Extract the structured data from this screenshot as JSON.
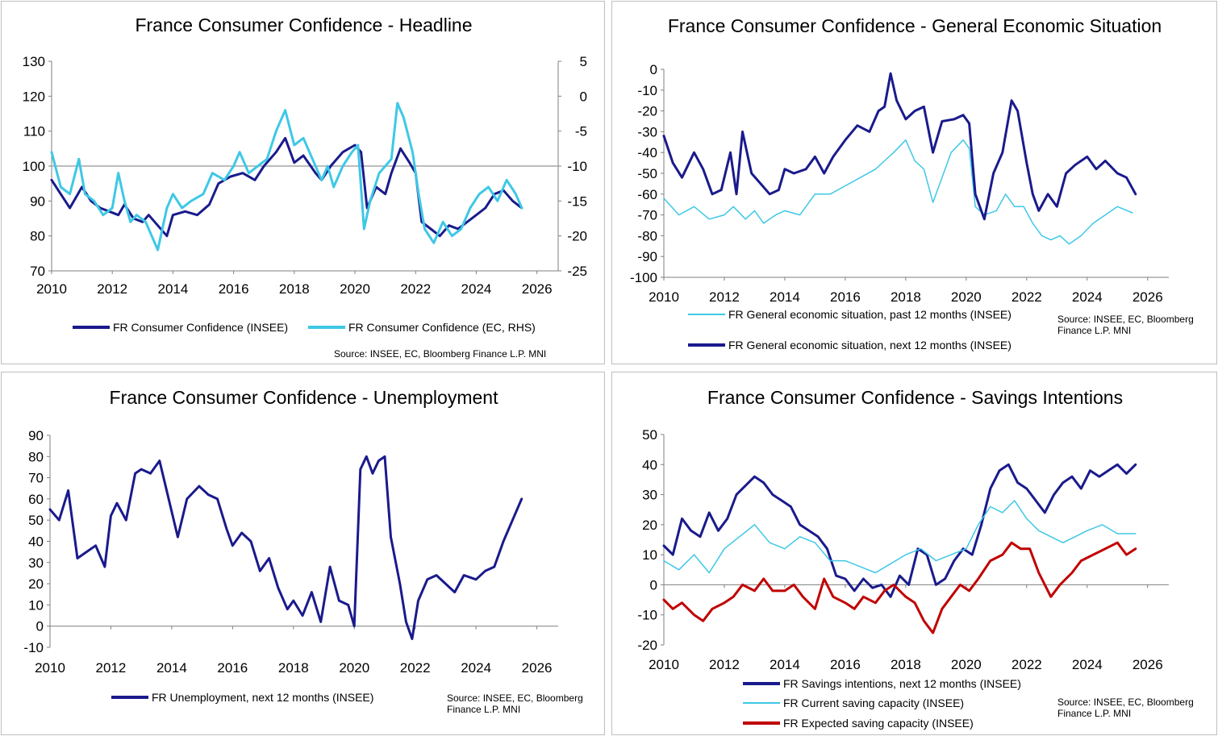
{
  "colors": {
    "navy": "#1a1a8c",
    "cyan": "#3ec8e6",
    "red": "#c00000",
    "axis": "#7f7f7f",
    "ref": "#a6a6a6"
  },
  "panels": {
    "headline": {
      "title": "France Consumer Confidence - Headline",
      "legend": [
        "FR Consumer Confidence (INSEE)",
        "FR Consumer Confidence (EC, RHS)"
      ],
      "source": "Source: INSEE, EC, Bloomberg Finance L.P. MNI"
    },
    "general": {
      "title": "France Consumer Confidence - General Economic Situation",
      "legend": [
        "FR General economic situation, past 12 months (INSEE)",
        "FR General economic situation, next 12 months (INSEE)"
      ],
      "source": "Source: INSEE, EC, Bloomberg Finance L.P. MNI"
    },
    "unemployment": {
      "title": "France Consumer Confidence - Unemployment",
      "legend": [
        "FR Unemployment, next 12 months (INSEE)"
      ],
      "source": "Source: INSEE, EC, Bloomberg Finance L.P. MNI"
    },
    "savings": {
      "title": "France Consumer Confidence - Savings Intentions",
      "legend": [
        "FR Savings intentions, next 12 months (INSEE)",
        "FR Current saving capacity (INSEE)",
        "FR Expected saving capacity (INSEE)"
      ],
      "source": "Source: INSEE, EC, Bloomberg Finance L.P. MNI"
    }
  },
  "chart_data": [
    {
      "id": "headline",
      "type": "line",
      "title": "France Consumer Confidence - Headline",
      "xlim": [
        2010,
        2026.7
      ],
      "xticks": [
        "2010",
        "2012",
        "2014",
        "2016",
        "2018",
        "2020",
        "2022",
        "2024",
        "2026"
      ],
      "ylim": [
        70,
        130
      ],
      "yticks": [
        "70",
        "80",
        "90",
        "100",
        "110",
        "120",
        "130"
      ],
      "y2lim": [
        -25,
        5
      ],
      "y2ticks": [
        "-25",
        "-20",
        "-15",
        "-10",
        "-5",
        "0",
        "5"
      ],
      "refline": 100,
      "series": [
        {
          "name": "FR Consumer Confidence (INSEE)",
          "color": "navy",
          "width": 3,
          "axis": "left",
          "x": [
            2010,
            2010.3,
            2010.6,
            2011,
            2011.3,
            2011.6,
            2011.9,
            2012.2,
            2012.4,
            2012.7,
            2013,
            2013.2,
            2013.5,
            2013.8,
            2014,
            2014.4,
            2014.8,
            2015.2,
            2015.5,
            2015.9,
            2016.3,
            2016.7,
            2017,
            2017.4,
            2017.7,
            2018,
            2018.3,
            2018.7,
            2018.9,
            2019.2,
            2019.6,
            2020,
            2020.2,
            2020.4,
            2020.7,
            2021,
            2021.2,
            2021.5,
            2021.8,
            2022,
            2022.2,
            2022.5,
            2022.8,
            2023.1,
            2023.4,
            2023.7,
            2024,
            2024.3,
            2024.6,
            2024.9,
            2025.2,
            2025.5
          ],
          "y": [
            96,
            92,
            88,
            94,
            90,
            88,
            87,
            86,
            89,
            85,
            84,
            86,
            83,
            80,
            86,
            87,
            86,
            89,
            95,
            97,
            98,
            96,
            100,
            104,
            108,
            101,
            103,
            98,
            96,
            100,
            104,
            106,
            104,
            88,
            94,
            92,
            98,
            105,
            101,
            98,
            84,
            82,
            80,
            83,
            82,
            84,
            86,
            88,
            92,
            93,
            90,
            88
          ]
        },
        {
          "name": "FR Consumer Confidence (EC, RHS)",
          "color": "cyan",
          "width": 3,
          "axis": "right",
          "x": [
            2010,
            2010.3,
            2010.6,
            2010.9,
            2011.1,
            2011.4,
            2011.7,
            2012,
            2012.2,
            2012.4,
            2012.6,
            2012.8,
            2013.1,
            2013.3,
            2013.5,
            2013.8,
            2014,
            2014.3,
            2014.6,
            2015,
            2015.3,
            2015.7,
            2016,
            2016.2,
            2016.5,
            2016.8,
            2017.1,
            2017.4,
            2017.7,
            2018,
            2018.3,
            2018.6,
            2018.9,
            2019.1,
            2019.3,
            2019.6,
            2019.9,
            2020.1,
            2020.3,
            2020.5,
            2020.8,
            2021,
            2021.2,
            2021.4,
            2021.6,
            2021.9,
            2022.1,
            2022.3,
            2022.6,
            2022.9,
            2023.2,
            2023.5,
            2023.8,
            2024.1,
            2024.4,
            2024.7,
            2025,
            2025.3,
            2025.5
          ],
          "y": [
            -8,
            -13,
            -14,
            -9,
            -14,
            -15,
            -17,
            -16,
            -11,
            -15,
            -18,
            -17,
            -18,
            -20,
            -22,
            -16,
            -14,
            -16,
            -15,
            -14,
            -11,
            -12,
            -10,
            -8,
            -11,
            -10,
            -9,
            -5,
            -2,
            -7,
            -6,
            -9,
            -12,
            -10,
            -13,
            -10,
            -8,
            -7,
            -19,
            -15,
            -11,
            -10,
            -9,
            -1,
            -3,
            -8,
            -14,
            -19,
            -21,
            -18,
            -20,
            -19,
            -16,
            -14,
            -13,
            -15,
            -12,
            -14,
            -16
          ]
        }
      ]
    },
    {
      "id": "general",
      "type": "line",
      "title": "France Consumer Confidence - General Economic Situation",
      "xlim": [
        2010,
        2026.7
      ],
      "xticks": [
        "2010",
        "2012",
        "2014",
        "2016",
        "2018",
        "2020",
        "2022",
        "2024",
        "2026"
      ],
      "ylim": [
        -100,
        0
      ],
      "yticks": [
        "0",
        "-10",
        "-20",
        "-30",
        "-40",
        "-50",
        "-60",
        "-70",
        "-80",
        "-90",
        "-100"
      ],
      "series": [
        {
          "name": "FR General economic situation, past 12 months (INSEE)",
          "color": "cyan",
          "width": 1.5,
          "x": [
            2010,
            2010.5,
            2011,
            2011.5,
            2012,
            2012.3,
            2012.7,
            2013,
            2013.3,
            2013.7,
            2014,
            2014.5,
            2015,
            2015.5,
            2016,
            2016.5,
            2017,
            2017.3,
            2017.6,
            2018,
            2018.3,
            2018.6,
            2018.9,
            2019.2,
            2019.5,
            2019.9,
            2020.1,
            2020.3,
            2020.6,
            2021,
            2021.3,
            2021.6,
            2021.9,
            2022.2,
            2022.5,
            2022.8,
            2023.1,
            2023.4,
            2023.8,
            2024.2,
            2024.6,
            2025,
            2025.5
          ],
          "y": [
            -62,
            -70,
            -66,
            -72,
            -70,
            -66,
            -72,
            -68,
            -74,
            -70,
            -68,
            -70,
            -60,
            -60,
            -56,
            -52,
            -48,
            -44,
            -40,
            -34,
            -44,
            -48,
            -64,
            -52,
            -40,
            -34,
            -38,
            -66,
            -70,
            -68,
            -60,
            -66,
            -66,
            -74,
            -80,
            -82,
            -80,
            -84,
            -80,
            -74,
            -70,
            -66,
            -69
          ]
        },
        {
          "name": "FR General economic situation, next 12 months (INSEE)",
          "color": "navy",
          "width": 3,
          "x": [
            2010,
            2010.3,
            2010.6,
            2011,
            2011.3,
            2011.6,
            2011.9,
            2012.2,
            2012.4,
            2012.6,
            2012.9,
            2013.2,
            2013.5,
            2013.8,
            2014,
            2014.3,
            2014.7,
            2015,
            2015.3,
            2015.6,
            2016,
            2016.4,
            2016.8,
            2017.1,
            2017.3,
            2017.5,
            2017.7,
            2018,
            2018.3,
            2018.6,
            2018.9,
            2019.2,
            2019.6,
            2019.9,
            2020.1,
            2020.3,
            2020.6,
            2020.9,
            2021.2,
            2021.5,
            2021.7,
            2022,
            2022.2,
            2022.4,
            2022.7,
            2023,
            2023.3,
            2023.6,
            2024,
            2024.3,
            2024.6,
            2025,
            2025.3,
            2025.6
          ],
          "y": [
            -32,
            -45,
            -52,
            -40,
            -48,
            -60,
            -58,
            -40,
            -60,
            -30,
            -50,
            -55,
            -60,
            -58,
            -48,
            -50,
            -48,
            -42,
            -50,
            -42,
            -34,
            -27,
            -30,
            -20,
            -18,
            -2,
            -15,
            -24,
            -20,
            -18,
            -40,
            -25,
            -24,
            -22,
            -26,
            -60,
            -72,
            -50,
            -40,
            -15,
            -20,
            -45,
            -60,
            -68,
            -60,
            -66,
            -50,
            -46,
            -42,
            -48,
            -44,
            -50,
            -52,
            -60
          ]
        }
      ]
    },
    {
      "id": "unemployment",
      "type": "line",
      "title": "France Consumer Confidence - Unemployment",
      "xlim": [
        2010,
        2026.7
      ],
      "xticks": [
        "2010",
        "2012",
        "2014",
        "2016",
        "2018",
        "2020",
        "2022",
        "2024",
        "2026"
      ],
      "ylim": [
        -10,
        90
      ],
      "yticks": [
        "-10",
        "0",
        "10",
        "20",
        "30",
        "40",
        "50",
        "60",
        "70",
        "80",
        "90"
      ],
      "series": [
        {
          "name": "FR Unemployment, next 12 months (INSEE)",
          "color": "navy",
          "width": 3,
          "x": [
            2010,
            2010.3,
            2010.6,
            2010.9,
            2011.2,
            2011.5,
            2011.8,
            2012,
            2012.2,
            2012.5,
            2012.8,
            2013,
            2013.3,
            2013.6,
            2013.9,
            2014.2,
            2014.5,
            2014.9,
            2015.2,
            2015.5,
            2015.8,
            2016,
            2016.3,
            2016.6,
            2016.9,
            2017.2,
            2017.5,
            2017.8,
            2018,
            2018.3,
            2018.6,
            2018.9,
            2019.2,
            2019.5,
            2019.8,
            2020,
            2020.2,
            2020.4,
            2020.6,
            2020.8,
            2021,
            2021.2,
            2021.5,
            2021.7,
            2021.9,
            2022.1,
            2022.4,
            2022.7,
            2023,
            2023.3,
            2023.6,
            2024,
            2024.3,
            2024.6,
            2024.9,
            2025.2,
            2025.5
          ],
          "y": [
            55,
            50,
            64,
            32,
            35,
            38,
            28,
            52,
            58,
            50,
            72,
            74,
            72,
            78,
            60,
            42,
            60,
            66,
            62,
            60,
            46,
            38,
            44,
            40,
            26,
            32,
            18,
            8,
            12,
            5,
            16,
            2,
            28,
            12,
            10,
            0,
            74,
            80,
            72,
            78,
            80,
            42,
            20,
            2,
            -6,
            12,
            22,
            24,
            20,
            16,
            24,
            22,
            26,
            28,
            40,
            50,
            60
          ]
        }
      ]
    },
    {
      "id": "savings",
      "type": "line",
      "title": "France Consumer Confidence - Savings Intentions",
      "xlim": [
        2010,
        2026.7
      ],
      "xticks": [
        "2010",
        "2012",
        "2014",
        "2016",
        "2018",
        "2020",
        "2022",
        "2024",
        "2026"
      ],
      "ylim": [
        -20,
        50
      ],
      "yticks": [
        "50",
        "40",
        "30",
        "20",
        "10",
        "0",
        "-10",
        "-20"
      ],
      "series": [
        {
          "name": "FR Savings intentions, next 12 months (INSEE)",
          "color": "navy",
          "width": 3,
          "x": [
            2010,
            2010.3,
            2010.6,
            2010.9,
            2011.2,
            2011.5,
            2011.8,
            2012.1,
            2012.4,
            2012.7,
            2013,
            2013.3,
            2013.6,
            2013.9,
            2014.2,
            2014.5,
            2014.8,
            2015.1,
            2015.4,
            2015.7,
            2016,
            2016.3,
            2016.6,
            2016.9,
            2017.2,
            2017.5,
            2017.8,
            2018.1,
            2018.4,
            2018.7,
            2019,
            2019.3,
            2019.6,
            2019.9,
            2020.2,
            2020.5,
            2020.8,
            2021.1,
            2021.4,
            2021.7,
            2022,
            2022.3,
            2022.6,
            2022.9,
            2023.2,
            2023.5,
            2023.8,
            2024.1,
            2024.4,
            2024.7,
            2025,
            2025.3,
            2025.6
          ],
          "y": [
            13,
            10,
            22,
            18,
            16,
            24,
            18,
            22,
            30,
            33,
            36,
            34,
            30,
            28,
            26,
            20,
            18,
            16,
            12,
            3,
            2,
            -2,
            2,
            -1,
            0,
            -4,
            3,
            0,
            12,
            10,
            0,
            2,
            8,
            12,
            10,
            20,
            32,
            38,
            40,
            34,
            32,
            28,
            24,
            30,
            34,
            36,
            32,
            38,
            36,
            38,
            40,
            37,
            40
          ]
        },
        {
          "name": "FR Current saving capacity (INSEE)",
          "color": "cyan",
          "width": 1.5,
          "x": [
            2010,
            2010.5,
            2011,
            2011.5,
            2012,
            2012.5,
            2013,
            2013.5,
            2014,
            2014.5,
            2015,
            2015.5,
            2016,
            2016.5,
            2017,
            2017.5,
            2018,
            2018.5,
            2019,
            2019.5,
            2020,
            2020.4,
            2020.8,
            2021.2,
            2021.6,
            2022,
            2022.4,
            2022.8,
            2023.2,
            2023.6,
            2024,
            2024.5,
            2025,
            2025.6
          ],
          "y": [
            8,
            5,
            10,
            4,
            12,
            16,
            20,
            14,
            12,
            16,
            14,
            8,
            8,
            6,
            4,
            7,
            10,
            12,
            8,
            10,
            12,
            20,
            26,
            24,
            28,
            22,
            18,
            16,
            14,
            16,
            18,
            20,
            17,
            17
          ]
        },
        {
          "name": "FR Expected saving capacity (INSEE)",
          "color": "red",
          "width": 3,
          "x": [
            2010,
            2010.3,
            2010.6,
            2011,
            2011.3,
            2011.6,
            2012,
            2012.3,
            2012.6,
            2013,
            2013.3,
            2013.6,
            2014,
            2014.3,
            2014.6,
            2015,
            2015.3,
            2015.6,
            2016,
            2016.3,
            2016.6,
            2017,
            2017.3,
            2017.6,
            2018,
            2018.3,
            2018.6,
            2018.9,
            2019.2,
            2019.5,
            2019.8,
            2020.1,
            2020.4,
            2020.8,
            2021.2,
            2021.5,
            2021.8,
            2022.1,
            2022.4,
            2022.8,
            2023.1,
            2023.5,
            2023.8,
            2024.2,
            2024.6,
            2025,
            2025.3,
            2025.6
          ],
          "y": [
            -5,
            -8,
            -6,
            -10,
            -12,
            -8,
            -6,
            -4,
            0,
            -2,
            2,
            -2,
            -2,
            0,
            -4,
            -8,
            2,
            -4,
            -6,
            -8,
            -4,
            -6,
            -2,
            0,
            -4,
            -6,
            -12,
            -16,
            -8,
            -4,
            0,
            -2,
            2,
            8,
            10,
            14,
            12,
            12,
            4,
            -4,
            0,
            4,
            8,
            10,
            12,
            14,
            10,
            12
          ]
        }
      ]
    }
  ]
}
